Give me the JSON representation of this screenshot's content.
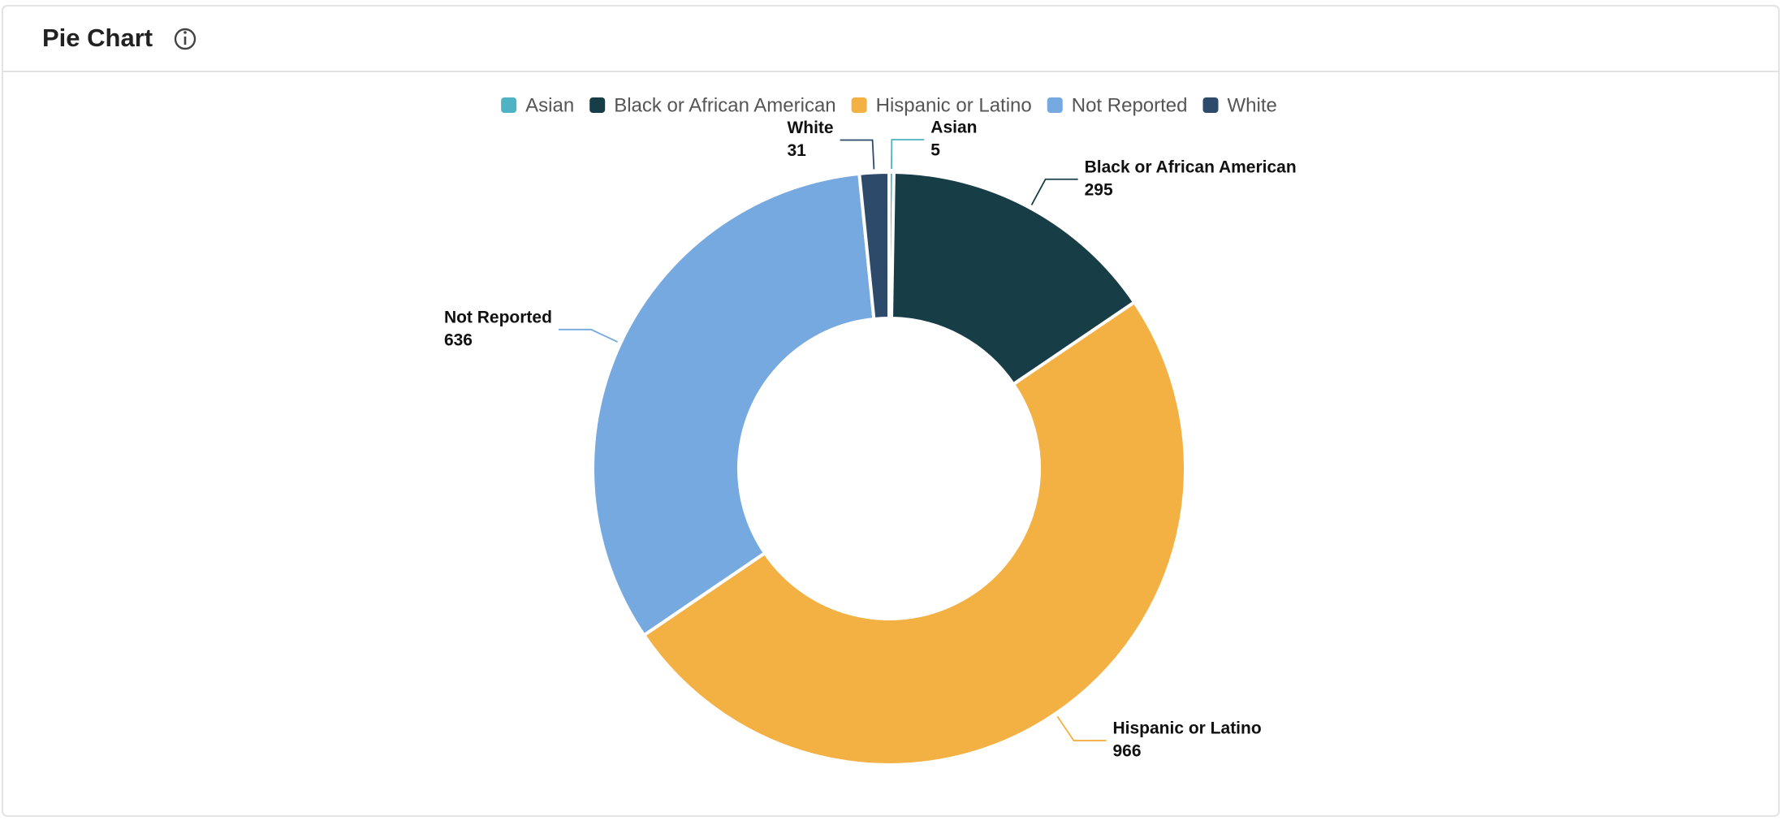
{
  "chart_data": {
    "type": "pie",
    "title": "Pie Chart",
    "categories": [
      "Asian",
      "Black or African American",
      "Hispanic or Latino",
      "Not Reported",
      "White"
    ],
    "values": [
      5,
      295,
      966,
      636,
      31
    ],
    "colors": [
      "#4fb3c4",
      "#173d47",
      "#f3b143",
      "#76a9df",
      "#2e4a6b"
    ]
  }
}
